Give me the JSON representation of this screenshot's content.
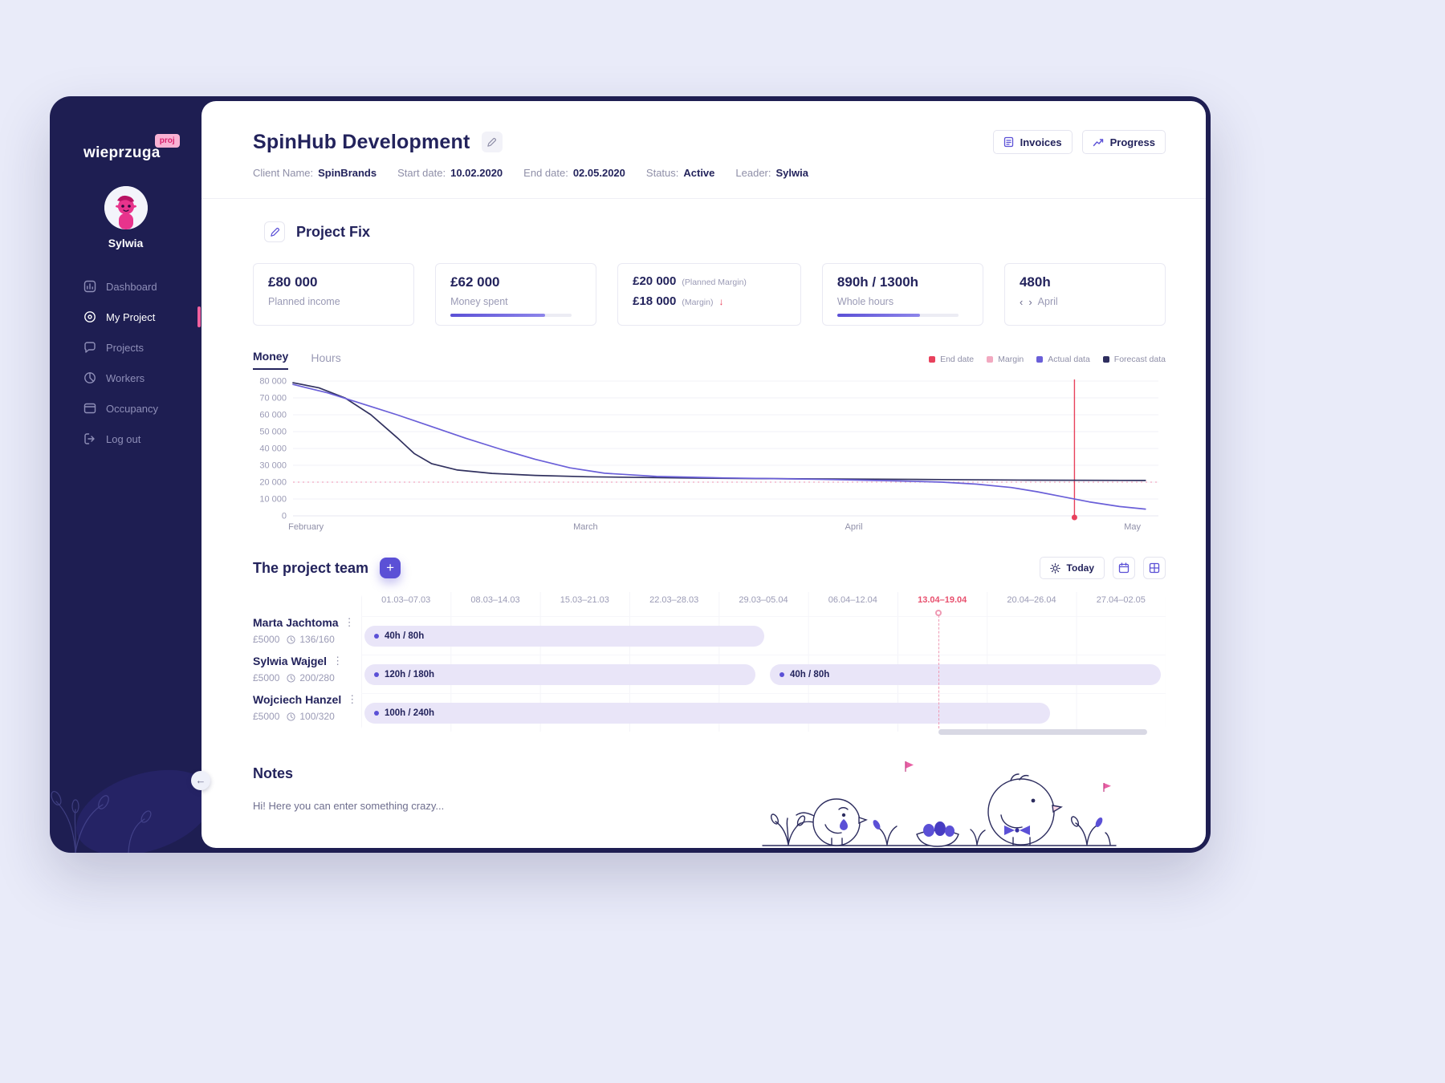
{
  "logo": {
    "name": "wieprzuga",
    "badge": "proj"
  },
  "user": {
    "name": "Sylwia"
  },
  "nav": {
    "items": [
      {
        "label": "Dashboard"
      },
      {
        "label": "My Project"
      },
      {
        "label": "Projects"
      },
      {
        "label": "Workers"
      },
      {
        "label": "Occupancy"
      },
      {
        "label": "Log out"
      }
    ]
  },
  "header": {
    "title": "SpinHub Development",
    "meta": [
      {
        "label": "Client Name:",
        "value": "SpinBrands"
      },
      {
        "label": "Start date:",
        "value": "10.02.2020"
      },
      {
        "label": "End date:",
        "value": "02.05.2020"
      },
      {
        "label": "Status:",
        "value": "Active"
      },
      {
        "label": "Leader:",
        "value": "Sylwia"
      }
    ],
    "invoices_button": "Invoices",
    "progress_button": "Progress"
  },
  "project_fix": {
    "title": "Project Fix",
    "cards": {
      "planned_income": {
        "value": "£80 000",
        "label": "Planned income"
      },
      "money_spent": {
        "value": "£62 000",
        "label": "Money spent",
        "progress_pct": 78
      },
      "margin": {
        "planned_value": "£20 000",
        "planned_note": "(Planned Margin)",
        "actual_value": "£18 000",
        "actual_note": "(Margin)",
        "trend": "↓"
      },
      "whole_hours": {
        "value": "890h / 1300h",
        "label": "Whole hours",
        "progress_pct": 68
      },
      "month_hours": {
        "value": "480h",
        "label": "April",
        "prev_arrow": "‹",
        "next_arrow": "›"
      }
    },
    "tabs": {
      "money": "Money",
      "hours": "Hours",
      "active": "Money"
    },
    "legend": [
      {
        "label": "End date",
        "color": "#e8415c"
      },
      {
        "label": "Margin",
        "color": "#f2a9c0"
      },
      {
        "label": "Actual data",
        "color": "#6a5fd8"
      },
      {
        "label": "Forecast data",
        "color": "#2e2e5f"
      }
    ]
  },
  "chart_data": {
    "type": "line",
    "ylim": [
      0,
      80000
    ],
    "y_ticks": [
      0,
      10000,
      20000,
      30000,
      40000,
      50000,
      60000,
      70000,
      80000
    ],
    "x_months": [
      {
        "label": "February",
        "x_pct": 1.5
      },
      {
        "label": "March",
        "x_pct": 33.8
      },
      {
        "label": "April",
        "x_pct": 64.8
      },
      {
        "label": "May",
        "x_pct": 97
      }
    ],
    "grid": true,
    "legend_position": "top-right",
    "margin_value": 20000,
    "end_date_x_pct": 90.3,
    "series": [
      {
        "name": "Forecast data",
        "color": "#31315f",
        "points": [
          [
            0,
            79000
          ],
          [
            3,
            76000
          ],
          [
            6,
            70000
          ],
          [
            9,
            60000
          ],
          [
            12,
            46500
          ],
          [
            14,
            37000
          ],
          [
            16,
            31000
          ],
          [
            19,
            27200
          ],
          [
            23,
            25200
          ],
          [
            28,
            24000
          ],
          [
            34,
            23200
          ],
          [
            45,
            22500
          ],
          [
            55,
            22100
          ],
          [
            65,
            21800
          ],
          [
            75,
            21500
          ],
          [
            85,
            21200
          ],
          [
            98.5,
            21000
          ]
        ]
      },
      {
        "name": "Actual data",
        "color": "#6a5fd8",
        "points": [
          [
            0,
            78000
          ],
          [
            4,
            73000
          ],
          [
            8,
            66500
          ],
          [
            12,
            60000
          ],
          [
            16,
            53000
          ],
          [
            20,
            46000
          ],
          [
            24,
            39500
          ],
          [
            28,
            33500
          ],
          [
            32,
            28500
          ],
          [
            36,
            25300
          ],
          [
            42,
            23400
          ],
          [
            50,
            22500
          ],
          [
            58,
            21900
          ],
          [
            64,
            21400
          ],
          [
            70,
            20700
          ],
          [
            75,
            20000
          ],
          [
            79,
            18800
          ],
          [
            83,
            16800
          ],
          [
            86,
            14300
          ],
          [
            89,
            11300
          ],
          [
            92,
            8300
          ],
          [
            95.5,
            5500
          ],
          [
            98.5,
            4000
          ]
        ]
      }
    ]
  },
  "team": {
    "title": "The project team",
    "today_button": "Today",
    "columns": [
      "01.03–07.03",
      "08.03–14.03",
      "15.03–21.03",
      "22.03–28.03",
      "29.03–05.04",
      "06.04–12.04",
      "13.04–19.04",
      "20.04–26.04",
      "27.04–02.05"
    ],
    "highlighted_column": "13.04–19.04",
    "today_marker_pct": 71.8,
    "members": [
      {
        "name": "Marta Jachtoma",
        "rate": "£5000",
        "hours": "136/160",
        "bars": [
          {
            "label": "40h / 80h",
            "start_pct": 0.4,
            "width_pct": 49.7
          }
        ]
      },
      {
        "name": "Sylwia Wajgel",
        "rate": "£5000",
        "hours": "200/280",
        "bars": [
          {
            "label": "120h / 180h",
            "start_pct": 0.4,
            "width_pct": 48.6
          },
          {
            "label": "40h / 80h",
            "start_pct": 50.8,
            "width_pct": 48.6
          }
        ]
      },
      {
        "name": "Wojciech Hanzel",
        "rate": "£5000",
        "hours": "100/320",
        "bars": [
          {
            "label": "100h / 240h",
            "start_pct": 0.4,
            "width_pct": 85.2
          }
        ]
      }
    ],
    "scrollbar": {
      "start_pct": 71.8,
      "width_pct": 25.9
    }
  },
  "notes": {
    "title": "Notes",
    "text": "Hi! Here you can enter something crazy..."
  }
}
